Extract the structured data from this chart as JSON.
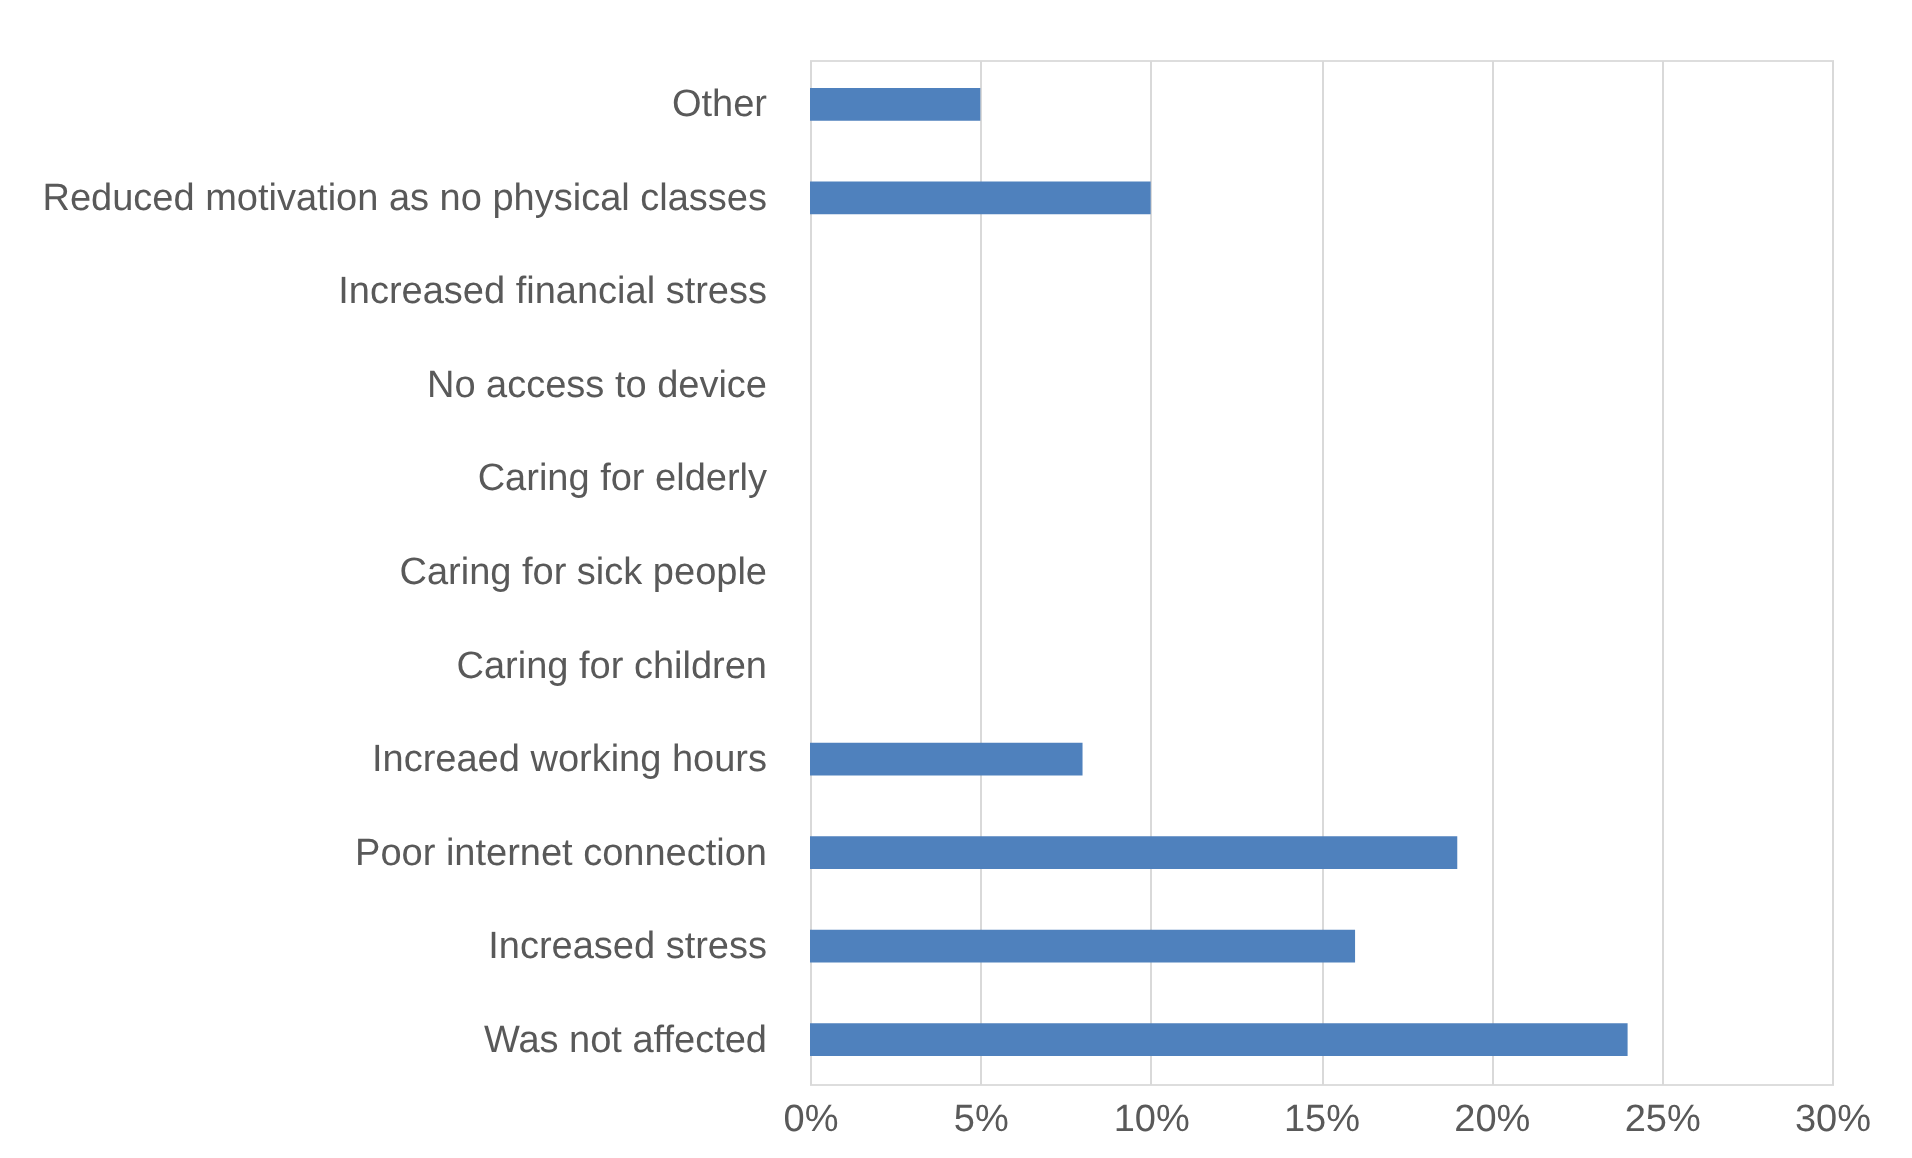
{
  "chart_data": {
    "type": "bar",
    "orientation": "horizontal",
    "categories": [
      "Other",
      "Reduced motivation as no physical classes",
      "Increased financial stress",
      "No access to device",
      "Caring for elderly",
      "Caring for sick people",
      "Caring for children",
      "Increaed working hours",
      "Poor internet connection",
      "Increased stress",
      "Was not affected"
    ],
    "values": [
      5,
      10,
      0,
      0,
      0,
      0,
      0,
      8,
      19,
      16,
      24
    ],
    "color": "#4f81bd",
    "xlim": [
      0,
      30
    ],
    "xticks": [
      {
        "value": 0,
        "label": "0%"
      },
      {
        "value": 5,
        "label": "5%"
      },
      {
        "value": 10,
        "label": "10%"
      },
      {
        "value": 15,
        "label": "15%"
      },
      {
        "value": 20,
        "label": "20%"
      },
      {
        "value": 25,
        "label": "25%"
      },
      {
        "value": 30,
        "label": "30%"
      }
    ],
    "grid": "x"
  }
}
